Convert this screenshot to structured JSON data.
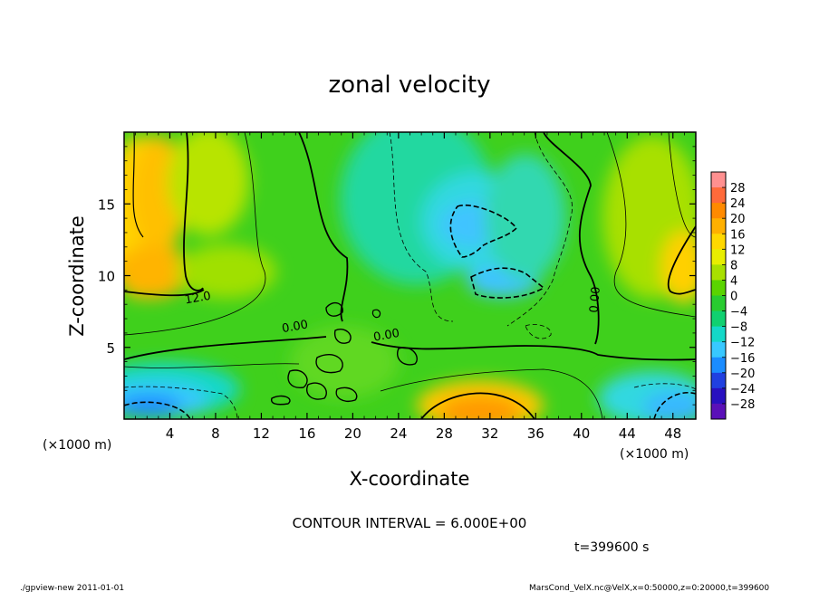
{
  "chart_data": {
    "type": "heatmap",
    "title": "zonal velocity",
    "xlabel": "X-coordinate",
    "ylabel": "Z-coordinate",
    "x_unit_left": "(×1000 m)",
    "x_unit_right": "(×1000 m)",
    "x_ticks": [
      4,
      8,
      12,
      16,
      20,
      24,
      28,
      32,
      36,
      40,
      44,
      48
    ],
    "y_ticks": [
      5,
      10,
      15
    ],
    "xlim": [
      0,
      50
    ],
    "ylim": [
      0,
      20
    ],
    "colorbar": {
      "labels": [
        "28",
        "24",
        "20",
        "16",
        "12",
        "8",
        "4",
        "0",
        "−4",
        "−8",
        "−12",
        "−16",
        "−20",
        "−24",
        "−28"
      ],
      "colors": [
        "#ff9090",
        "#ff6a3a",
        "#ff8a00",
        "#ffb000",
        "#ffd800",
        "#e8ee00",
        "#a8e000",
        "#5ad400",
        "#28cc30",
        "#10d070",
        "#14d8c8",
        "#38c8ff",
        "#1a8cff",
        "#2040e0",
        "#2810c0",
        "#5a10b8"
      ]
    },
    "contour_labels": [
      {
        "text": "12.0",
        "x": 6.5,
        "z": 8.2
      },
      {
        "text": "0.00",
        "x": 15,
        "z": 6.2
      },
      {
        "text": "0.00",
        "x": 23,
        "z": 5.6
      },
      {
        "text": "0.00",
        "x": 41.5,
        "z": 8.3
      }
    ],
    "contour_interval": "CONTOUR INTERVAL = 6.000E+00",
    "time": "t=399600 s",
    "footer_left": "./gpview-new   2011-01-01",
    "footer_right": "MarsCond_VelX.nc@VelX,x=0:50000,z=0:20000,t=399600"
  }
}
